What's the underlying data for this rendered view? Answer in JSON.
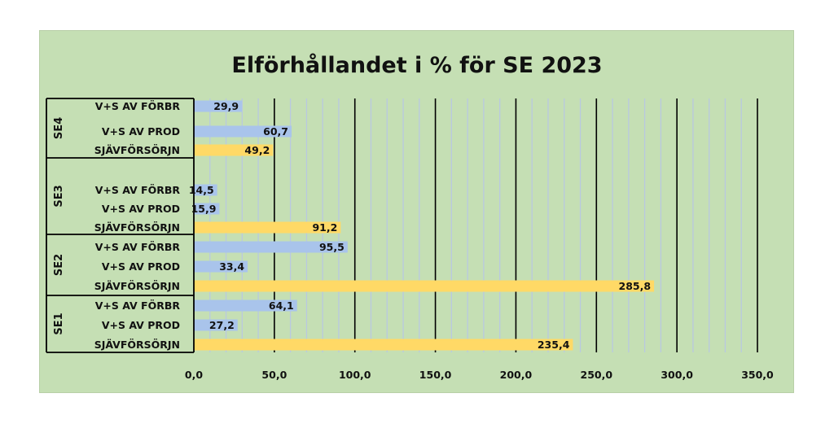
{
  "chart_data": {
    "type": "bar",
    "orientation": "horizontal",
    "title": "Elförhållandet i % för SE 2023",
    "xlim": [
      0,
      350
    ],
    "x_ticks": [
      "0,0",
      "50,0",
      "100,0",
      "150,0",
      "200,0",
      "250,0",
      "300,0",
      "350,0"
    ],
    "groups": [
      {
        "name": "SE4",
        "rows": [
          {
            "label": "V+S AV FÖRBR",
            "value": 29.9,
            "display": "29,9",
            "kind": "blue"
          },
          {
            "label": "V+S AV PROD",
            "value": 60.7,
            "display": "60,7",
            "kind": "blue"
          },
          {
            "label": "SJÄVFÖRSÖRJN",
            "value": 49.2,
            "display": "49,2",
            "kind": "yellow"
          }
        ]
      },
      {
        "name": "SE3",
        "rows": [
          {
            "label": "V+S AV FÖRBR",
            "value": 14.5,
            "display": "14,5",
            "kind": "blue"
          },
          {
            "label": "V+S AV PROD",
            "value": 15.9,
            "display": "15,9",
            "kind": "blue"
          },
          {
            "label": "SJÄVFÖRSÖRJN",
            "value": 91.2,
            "display": "91,2",
            "kind": "yellow"
          }
        ]
      },
      {
        "name": "SE2",
        "rows": [
          {
            "label": "V+S AV FÖRBR",
            "value": 95.5,
            "display": "95,5",
            "kind": "blue"
          },
          {
            "label": "V+S AV PROD",
            "value": 33.4,
            "display": "33,4",
            "kind": "blue"
          },
          {
            "label": "SJÄVFÖRSÖRJN",
            "value": 285.8,
            "display": "285,8",
            "kind": "yellow"
          }
        ]
      },
      {
        "name": "SE1",
        "rows": [
          {
            "label": "V+S AV FÖRBR",
            "value": 64.1,
            "display": "64,1",
            "kind": "blue"
          },
          {
            "label": "V+S AV PROD",
            "value": 27.2,
            "display": "27,2",
            "kind": "blue"
          },
          {
            "label": "SJÄVFÖRSÖRJN",
            "value": 235.4,
            "display": "235,4",
            "kind": "yellow"
          }
        ]
      }
    ],
    "colors": {
      "background": "#c5dfb4",
      "blue_bar": "#a9c4eb",
      "yellow_bar": "#ffd966",
      "major_grid": "#000000",
      "minor_grid": "#b9c9e0"
    },
    "grid": true
  }
}
